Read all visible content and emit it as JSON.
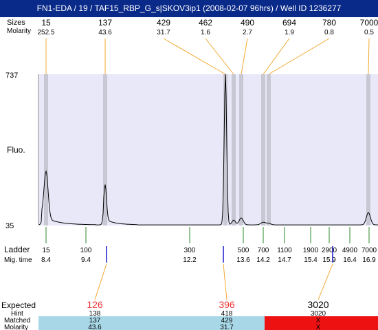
{
  "window": {
    "title": "FN1-EDA / 19 / TAF15_RBP_G_s|SKOV3ip1 (2008-02-07 96hrs) / Well ID 1236277"
  },
  "labels": {
    "sizes": "Sizes",
    "molarity": "Molarity",
    "fluo": "Fluo.",
    "ladder": "Ladder",
    "mig_time": "Mig. time",
    "expected": "Expected",
    "hint": "Hint",
    "matched": "Matched",
    "molarity_bottom": "Molarity"
  },
  "colors": {
    "plot_bg": "#e8e8f8",
    "band": "#c8c8d4",
    "connector": "#f0a830",
    "ladder_tick": "#2a8a2a",
    "marker_blue": "#1a1acc",
    "expected_red": "#ee3333",
    "match_ok": "#a8d8e8",
    "match_fail": "#ee1111",
    "title_bg": "#0a2a8a"
  },
  "chart_data": {
    "type": "line",
    "y_axis": {
      "max_label": "737",
      "min_label": "35",
      "ylim": [
        35,
        737
      ]
    },
    "peaks": [
      {
        "size": "15",
        "molarity": "252.5"
      },
      {
        "size": "137",
        "molarity": "43.6"
      },
      {
        "size": "429",
        "molarity": "31.7"
      },
      {
        "size": "462",
        "molarity": "1.6"
      },
      {
        "size": "490",
        "molarity": "2.7"
      },
      {
        "size": "694",
        "molarity": "1.9"
      },
      {
        "size": "780",
        "molarity": "0.8"
      },
      {
        "size": "7000",
        "molarity": "0.5"
      }
    ],
    "ladder": [
      {
        "size": "15",
        "time": "8.4"
      },
      {
        "size": "100",
        "time": "9.4"
      },
      {
        "size": "300",
        "time": "12.2"
      },
      {
        "size": "500",
        "time": "13.6"
      },
      {
        "size": "700",
        "time": "14.2"
      },
      {
        "size": "1100",
        "time": "14.7"
      },
      {
        "size": "1900",
        "time": "15.4"
      },
      {
        "size": "2900",
        "time": "15.9"
      },
      {
        "size": "4900",
        "time": "16.4"
      },
      {
        "size": "7000",
        "time": "16.9"
      }
    ],
    "expected": [
      {
        "expected": "126",
        "hint": "138",
        "matched": "137",
        "molarity": "43.6",
        "status": "ok"
      },
      {
        "expected": "396",
        "hint": "418",
        "matched": "429",
        "molarity": "31.7",
        "status": "ok"
      },
      {
        "expected": "3020",
        "hint": "3020",
        "matched": "X",
        "molarity": "X",
        "status": "fail"
      }
    ]
  }
}
